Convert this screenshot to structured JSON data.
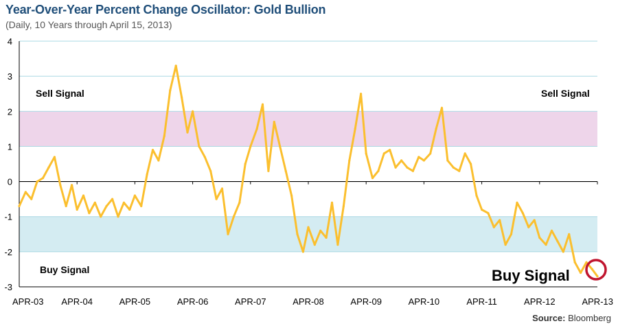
{
  "header": {
    "title": "Year-Over-Year Percent Change Oscillator: Gold Bullion",
    "subtitle": "(Daily, 10 Years through April 15, 2013)"
  },
  "footer": {
    "source_label": "Source:",
    "source_value": "Bloomberg"
  },
  "chart_data": {
    "type": "line",
    "ylim": [
      -3,
      4
    ],
    "yticks": [
      "4",
      "3",
      "2",
      "1",
      "0",
      "-1",
      "-2",
      "-3"
    ],
    "x_tick_labels": [
      "APR-03",
      "APR-04",
      "APR-05",
      "APR-06",
      "APR-07",
      "APR-08",
      "APR-09",
      "APR-10",
      "APR-11",
      "APR-12",
      "APR-13"
    ],
    "grid": true,
    "bands": [
      {
        "from": 1,
        "to": 2,
        "color": "#eed5ea"
      },
      {
        "from": -2,
        "to": -1,
        "color": "#d4ecf2"
      }
    ],
    "annotations": {
      "sell_left": "Sell Signal",
      "sell_right": "Sell Signal",
      "buy_left": "Buy Signal",
      "buy_right": "Buy Signal"
    },
    "series": [
      {
        "color": "#fbbf2e",
        "x": [
          2003.29,
          2003.4,
          2003.5,
          2003.6,
          2003.7,
          2003.8,
          2003.9,
          2004.0,
          2004.1,
          2004.2,
          2004.29,
          2004.4,
          2004.5,
          2004.6,
          2004.7,
          2004.8,
          2004.9,
          2005.0,
          2005.1,
          2005.2,
          2005.29,
          2005.4,
          2005.5,
          2005.6,
          2005.7,
          2005.8,
          2005.9,
          2006.0,
          2006.1,
          2006.2,
          2006.29,
          2006.4,
          2006.5,
          2006.6,
          2006.7,
          2006.8,
          2006.9,
          2007.0,
          2007.1,
          2007.2,
          2007.29,
          2007.4,
          2007.5,
          2007.6,
          2007.7,
          2007.8,
          2007.9,
          2008.0,
          2008.1,
          2008.2,
          2008.29,
          2008.4,
          2008.5,
          2008.6,
          2008.7,
          2008.8,
          2008.9,
          2009.0,
          2009.1,
          2009.2,
          2009.29,
          2009.4,
          2009.5,
          2009.6,
          2009.7,
          2009.8,
          2009.9,
          2010.0,
          2010.1,
          2010.2,
          2010.29,
          2010.4,
          2010.5,
          2010.6,
          2010.7,
          2010.8,
          2010.9,
          2011.0,
          2011.1,
          2011.2,
          2011.29,
          2011.4,
          2011.5,
          2011.6,
          2011.7,
          2011.8,
          2011.9,
          2012.0,
          2012.1,
          2012.2,
          2012.29,
          2012.4,
          2012.5,
          2012.6,
          2012.7,
          2012.8,
          2012.9,
          2013.0,
          2013.1,
          2013.2,
          2013.29
        ],
        "values": [
          -0.7,
          -0.3,
          -0.5,
          0.0,
          0.1,
          0.4,
          0.7,
          -0.1,
          -0.7,
          -0.1,
          -0.8,
          -0.4,
          -0.9,
          -0.6,
          -1.0,
          -0.7,
          -0.5,
          -1.0,
          -0.6,
          -0.8,
          -0.4,
          -0.7,
          0.2,
          0.9,
          0.6,
          1.3,
          2.6,
          3.3,
          2.4,
          1.4,
          2.0,
          1.0,
          0.7,
          0.3,
          -0.5,
          -0.2,
          -1.5,
          -1.0,
          -0.6,
          0.5,
          1.0,
          1.5,
          2.2,
          0.3,
          1.7,
          1.0,
          0.3,
          -0.4,
          -1.5,
          -2.0,
          -1.3,
          -1.8,
          -1.4,
          -1.6,
          -0.6,
          -1.8,
          -0.7,
          0.6,
          1.5,
          2.5,
          0.8,
          0.1,
          0.3,
          0.8,
          0.9,
          0.4,
          0.6,
          0.4,
          0.3,
          0.7,
          0.6,
          0.8,
          1.5,
          2.1,
          0.6,
          0.4,
          0.3,
          0.8,
          0.5,
          -0.4,
          -0.8,
          -0.9,
          -1.3,
          -1.1,
          -1.8,
          -1.5,
          -0.6,
          -0.9,
          -1.3,
          -1.1,
          -1.6,
          -1.8,
          -1.4,
          -1.7,
          -2.0,
          -1.5,
          -2.3,
          -2.6,
          -2.3,
          -2.5,
          -2.7
        ]
      }
    ]
  }
}
